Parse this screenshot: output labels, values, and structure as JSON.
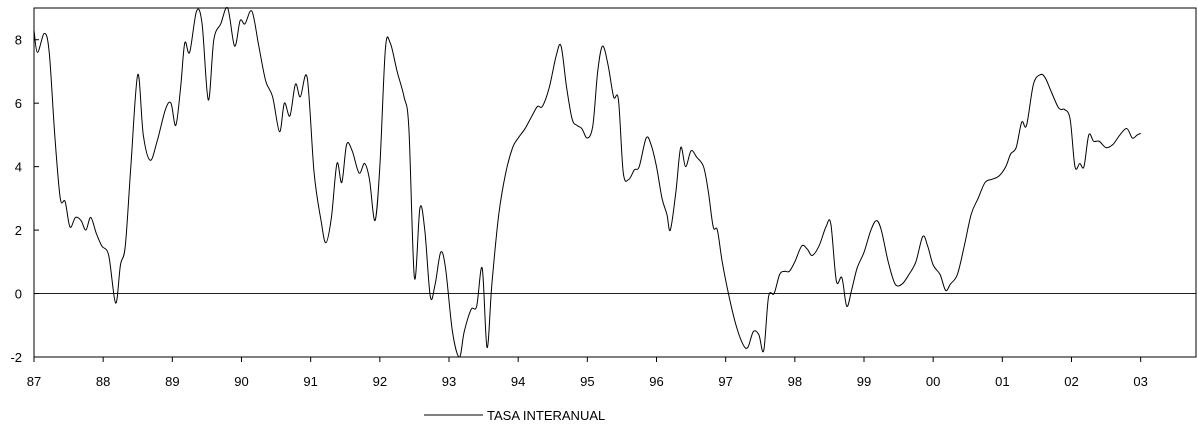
{
  "chart_data": {
    "type": "line",
    "title": "",
    "xlabel": "",
    "ylabel": "",
    "xlim": [
      1987.0,
      2003.8
    ],
    "ylim": [
      -2,
      9
    ],
    "grid": false,
    "legend_position": "bottom-center",
    "x_ticks": [
      {
        "x": 1987,
        "label": "87"
      },
      {
        "x": 1988,
        "label": "88"
      },
      {
        "x": 1989,
        "label": "89"
      },
      {
        "x": 1990,
        "label": "90"
      },
      {
        "x": 1991,
        "label": "91"
      },
      {
        "x": 1992,
        "label": "92"
      },
      {
        "x": 1993,
        "label": "93"
      },
      {
        "x": 1994,
        "label": "94"
      },
      {
        "x": 1995,
        "label": "95"
      },
      {
        "x": 1996,
        "label": "96"
      },
      {
        "x": 1997,
        "label": "97"
      },
      {
        "x": 1998,
        "label": "98"
      },
      {
        "x": 1999,
        "label": "99"
      },
      {
        "x": 2000,
        "label": "00"
      },
      {
        "x": 2001,
        "label": "01"
      },
      {
        "x": 2002,
        "label": "02"
      },
      {
        "x": 2003,
        "label": "03"
      }
    ],
    "y_ticks": [
      {
        "y": -2,
        "label": "-2"
      },
      {
        "y": 0,
        "label": "0"
      },
      {
        "y": 2,
        "label": "2"
      },
      {
        "y": 4,
        "label": "4"
      },
      {
        "y": 6,
        "label": "6"
      },
      {
        "y": 8,
        "label": "8"
      }
    ],
    "reference_line_y": 0,
    "line_color": "#000000",
    "series": [
      {
        "name": "TASA INTERANUAL",
        "points": [
          [
            1987.0,
            8.3
          ],
          [
            1987.05,
            7.6
          ],
          [
            1987.15,
            8.2
          ],
          [
            1987.22,
            7.6
          ],
          [
            1987.3,
            5.0
          ],
          [
            1987.38,
            3.0
          ],
          [
            1987.45,
            2.9
          ],
          [
            1987.52,
            2.1
          ],
          [
            1987.6,
            2.4
          ],
          [
            1987.68,
            2.3
          ],
          [
            1987.75,
            2.0
          ],
          [
            1987.82,
            2.4
          ],
          [
            1987.9,
            1.9
          ],
          [
            1987.98,
            1.5
          ],
          [
            1988.08,
            1.2
          ],
          [
            1988.18,
            -0.3
          ],
          [
            1988.25,
            0.9
          ],
          [
            1988.32,
            1.5
          ],
          [
            1988.4,
            4.0
          ],
          [
            1988.5,
            6.9
          ],
          [
            1988.58,
            5.0
          ],
          [
            1988.68,
            4.2
          ],
          [
            1988.78,
            4.8
          ],
          [
            1988.9,
            5.8
          ],
          [
            1988.98,
            6.0
          ],
          [
            1989.05,
            5.3
          ],
          [
            1989.12,
            6.5
          ],
          [
            1989.18,
            7.9
          ],
          [
            1989.25,
            7.6
          ],
          [
            1989.35,
            8.9
          ],
          [
            1989.43,
            8.5
          ],
          [
            1989.52,
            6.1
          ],
          [
            1989.6,
            8.0
          ],
          [
            1989.7,
            8.5
          ],
          [
            1989.8,
            9.0
          ],
          [
            1989.9,
            7.8
          ],
          [
            1989.98,
            8.6
          ],
          [
            1990.05,
            8.5
          ],
          [
            1990.15,
            8.9
          ],
          [
            1990.25,
            7.8
          ],
          [
            1990.35,
            6.7
          ],
          [
            1990.45,
            6.2
          ],
          [
            1990.55,
            5.1
          ],
          [
            1990.62,
            6.0
          ],
          [
            1990.7,
            5.6
          ],
          [
            1990.78,
            6.6
          ],
          [
            1990.85,
            6.2
          ],
          [
            1990.95,
            6.8
          ],
          [
            1991.05,
            3.8
          ],
          [
            1991.15,
            2.3
          ],
          [
            1991.22,
            1.6
          ],
          [
            1991.3,
            2.4
          ],
          [
            1991.38,
            4.1
          ],
          [
            1991.45,
            3.5
          ],
          [
            1991.52,
            4.7
          ],
          [
            1991.6,
            4.5
          ],
          [
            1991.7,
            3.8
          ],
          [
            1991.78,
            4.1
          ],
          [
            1991.85,
            3.6
          ],
          [
            1991.93,
            2.3
          ],
          [
            1992.0,
            4.0
          ],
          [
            1992.08,
            7.7
          ],
          [
            1992.15,
            7.9
          ],
          [
            1992.25,
            7.0
          ],
          [
            1992.35,
            6.2
          ],
          [
            1992.42,
            5.2
          ],
          [
            1992.5,
            0.5
          ],
          [
            1992.58,
            2.7
          ],
          [
            1992.65,
            2.0
          ],
          [
            1992.73,
            -0.1
          ],
          [
            1992.8,
            0.3
          ],
          [
            1992.88,
            1.3
          ],
          [
            1992.95,
            0.8
          ],
          [
            1993.05,
            -1.2
          ],
          [
            1993.15,
            -2.0
          ],
          [
            1993.22,
            -1.2
          ],
          [
            1993.32,
            -0.5
          ],
          [
            1993.4,
            -0.4
          ],
          [
            1993.48,
            0.8
          ],
          [
            1993.55,
            -1.7
          ],
          [
            1993.62,
            0.3
          ],
          [
            1993.72,
            2.5
          ],
          [
            1993.82,
            3.8
          ],
          [
            1993.92,
            4.6
          ],
          [
            1994.0,
            4.9
          ],
          [
            1994.1,
            5.2
          ],
          [
            1994.2,
            5.6
          ],
          [
            1994.28,
            5.9
          ],
          [
            1994.35,
            5.9
          ],
          [
            1994.45,
            6.5
          ],
          [
            1994.55,
            7.5
          ],
          [
            1994.62,
            7.8
          ],
          [
            1994.7,
            6.5
          ],
          [
            1994.78,
            5.5
          ],
          [
            1994.85,
            5.3
          ],
          [
            1994.92,
            5.2
          ],
          [
            1995.0,
            4.9
          ],
          [
            1995.08,
            5.3
          ],
          [
            1995.15,
            7.0
          ],
          [
            1995.22,
            7.8
          ],
          [
            1995.3,
            7.2
          ],
          [
            1995.38,
            6.2
          ],
          [
            1995.45,
            6.1
          ],
          [
            1995.52,
            3.8
          ],
          [
            1995.6,
            3.6
          ],
          [
            1995.68,
            3.9
          ],
          [
            1995.75,
            4.0
          ],
          [
            1995.85,
            4.9
          ],
          [
            1995.92,
            4.7
          ],
          [
            1996.0,
            4.0
          ],
          [
            1996.08,
            3.0
          ],
          [
            1996.15,
            2.5
          ],
          [
            1996.2,
            2.0
          ],
          [
            1996.28,
            3.2
          ],
          [
            1996.35,
            4.6
          ],
          [
            1996.42,
            4.0
          ],
          [
            1996.5,
            4.5
          ],
          [
            1996.58,
            4.3
          ],
          [
            1996.68,
            4.0
          ],
          [
            1996.75,
            3.2
          ],
          [
            1996.82,
            2.1
          ],
          [
            1996.88,
            2.0
          ],
          [
            1996.95,
            1.0
          ],
          [
            1997.05,
            -0.1
          ],
          [
            1997.15,
            -1.0
          ],
          [
            1997.25,
            -1.6
          ],
          [
            1997.32,
            -1.7
          ],
          [
            1997.4,
            -1.2
          ],
          [
            1997.48,
            -1.3
          ],
          [
            1997.55,
            -1.8
          ],
          [
            1997.62,
            -0.1
          ],
          [
            1997.7,
            0.0
          ],
          [
            1997.78,
            0.6
          ],
          [
            1997.85,
            0.7
          ],
          [
            1997.92,
            0.7
          ],
          [
            1998.0,
            1.0
          ],
          [
            1998.1,
            1.5
          ],
          [
            1998.18,
            1.4
          ],
          [
            1998.25,
            1.2
          ],
          [
            1998.35,
            1.5
          ],
          [
            1998.45,
            2.1
          ],
          [
            1998.52,
            2.2
          ],
          [
            1998.6,
            0.4
          ],
          [
            1998.68,
            0.5
          ],
          [
            1998.75,
            -0.4
          ],
          [
            1998.82,
            0.1
          ],
          [
            1998.9,
            0.8
          ],
          [
            1999.0,
            1.3
          ],
          [
            1999.1,
            2.0
          ],
          [
            1999.18,
            2.3
          ],
          [
            1999.25,
            2.0
          ],
          [
            1999.35,
            1.0
          ],
          [
            1999.45,
            0.3
          ],
          [
            1999.55,
            0.3
          ],
          [
            1999.65,
            0.6
          ],
          [
            1999.75,
            1.0
          ],
          [
            1999.85,
            1.8
          ],
          [
            1999.92,
            1.5
          ],
          [
            2000.0,
            0.9
          ],
          [
            2000.1,
            0.6
          ],
          [
            2000.18,
            0.1
          ],
          [
            2000.25,
            0.3
          ],
          [
            2000.35,
            0.6
          ],
          [
            2000.45,
            1.5
          ],
          [
            2000.55,
            2.5
          ],
          [
            2000.65,
            3.0
          ],
          [
            2000.75,
            3.5
          ],
          [
            2000.85,
            3.6
          ],
          [
            2000.95,
            3.7
          ],
          [
            2001.05,
            4.0
          ],
          [
            2001.12,
            4.4
          ],
          [
            2001.2,
            4.6
          ],
          [
            2001.28,
            5.4
          ],
          [
            2001.35,
            5.3
          ],
          [
            2001.45,
            6.6
          ],
          [
            2001.55,
            6.9
          ],
          [
            2001.62,
            6.8
          ],
          [
            2001.7,
            6.4
          ],
          [
            2001.8,
            5.9
          ],
          [
            2001.85,
            5.8
          ],
          [
            2001.9,
            5.8
          ],
          [
            2001.98,
            5.5
          ],
          [
            2002.05,
            4.0
          ],
          [
            2002.12,
            4.1
          ],
          [
            2002.18,
            4.0
          ],
          [
            2002.25,
            5.0
          ],
          [
            2002.32,
            4.8
          ],
          [
            2002.4,
            4.8
          ],
          [
            2002.5,
            4.6
          ],
          [
            2002.6,
            4.7
          ],
          [
            2002.7,
            5.0
          ],
          [
            2002.8,
            5.2
          ],
          [
            2002.88,
            4.9
          ],
          [
            2002.95,
            5.0
          ],
          [
            2003.0,
            5.05
          ]
        ]
      }
    ]
  }
}
